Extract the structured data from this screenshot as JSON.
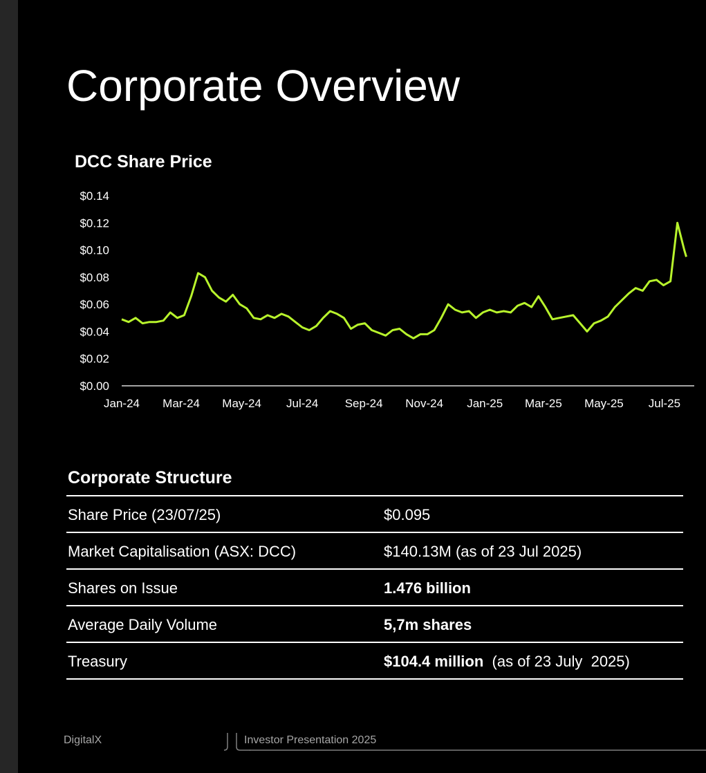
{
  "slide": {
    "title": "Corporate Overview"
  },
  "chart_data": {
    "type": "line",
    "title": "DCC Share Price",
    "xlabel": "",
    "ylabel": "",
    "x_tick_labels": [
      "Jan-24",
      "Mar-24",
      "May-24",
      "Jul-24",
      "Sep-24",
      "Nov-24",
      "Jan-25",
      "Mar-25",
      "May-25",
      "Jul-25"
    ],
    "y_tick_labels": [
      "$0.00",
      "$0.02",
      "$0.04",
      "$0.06",
      "$0.08",
      "$0.10",
      "$0.12",
      "$0.14"
    ],
    "ylim": [
      0,
      0.14
    ],
    "xlim": [
      "2024-01-01",
      "2025-07-31"
    ],
    "grid": false,
    "line_color": "#b8f42c",
    "series": [
      {
        "x": [
          "2024-01-01",
          "2024-01-08",
          "2024-01-15",
          "2024-01-22",
          "2024-01-29",
          "2024-02-05",
          "2024-02-12",
          "2024-02-19",
          "2024-02-26",
          "2024-03-04",
          "2024-03-11",
          "2024-03-18",
          "2024-03-25",
          "2024-04-01",
          "2024-04-08",
          "2024-04-15",
          "2024-04-22",
          "2024-04-29",
          "2024-05-06",
          "2024-05-13",
          "2024-05-20",
          "2024-05-27",
          "2024-06-03",
          "2024-06-10",
          "2024-06-17",
          "2024-06-24",
          "2024-07-01",
          "2024-07-08",
          "2024-07-15",
          "2024-07-22",
          "2024-07-29",
          "2024-08-05",
          "2024-08-12",
          "2024-08-19",
          "2024-08-26",
          "2024-09-02",
          "2024-09-09",
          "2024-09-16",
          "2024-09-23",
          "2024-09-30",
          "2024-10-07",
          "2024-10-14",
          "2024-10-21",
          "2024-10-28",
          "2024-11-04",
          "2024-11-11",
          "2024-11-18",
          "2024-11-25",
          "2024-12-02",
          "2024-12-09",
          "2024-12-16",
          "2024-12-23",
          "2024-12-30",
          "2025-01-06",
          "2025-01-13",
          "2025-01-20",
          "2025-01-27",
          "2025-02-03",
          "2025-02-10",
          "2025-02-17",
          "2025-02-24",
          "2025-03-03",
          "2025-03-10",
          "2025-03-17",
          "2025-03-24",
          "2025-03-31",
          "2025-04-07",
          "2025-04-14",
          "2025-04-21",
          "2025-04-28",
          "2025-05-05",
          "2025-05-12",
          "2025-05-19",
          "2025-05-26",
          "2025-06-02",
          "2025-06-09",
          "2025-06-16",
          "2025-06-23",
          "2025-06-30",
          "2025-07-07",
          "2025-07-14",
          "2025-07-21",
          "2025-07-23"
        ],
        "values": [
          0.049,
          0.047,
          0.05,
          0.046,
          0.047,
          0.047,
          0.048,
          0.054,
          0.05,
          0.052,
          0.066,
          0.083,
          0.08,
          0.07,
          0.065,
          0.062,
          0.067,
          0.06,
          0.057,
          0.05,
          0.049,
          0.052,
          0.05,
          0.053,
          0.051,
          0.047,
          0.043,
          0.041,
          0.044,
          0.05,
          0.055,
          0.053,
          0.05,
          0.042,
          0.045,
          0.046,
          0.041,
          0.039,
          0.037,
          0.041,
          0.042,
          0.038,
          0.035,
          0.038,
          0.038,
          0.041,
          0.05,
          0.06,
          0.056,
          0.054,
          0.055,
          0.05,
          0.054,
          0.056,
          0.054,
          0.055,
          0.054,
          0.059,
          0.061,
          0.058,
          0.066,
          0.058,
          0.049,
          0.05,
          0.051,
          0.052,
          0.046,
          0.04,
          0.046,
          0.048,
          0.051,
          0.058,
          0.063,
          0.068,
          0.072,
          0.07,
          0.077,
          0.078,
          0.074,
          0.077,
          0.12,
          0.1,
          0.095
        ]
      }
    ]
  },
  "corporate_structure": {
    "title": "Corporate Structure",
    "rows": [
      {
        "label": "Share Price (23/07/25)",
        "value_bold": "",
        "value": "$0.095"
      },
      {
        "label": "Market Capitalisation (ASX: DCC)",
        "value_bold": "",
        "value": "$140.13M (as of 23 Jul 2025)"
      },
      {
        "label": "Shares on Issue",
        "value_bold": "1.476 billion",
        "value": ""
      },
      {
        "label": "Average Daily Volume",
        "value_bold": "5,7m shares",
        "value": ""
      },
      {
        "label": "Treasury",
        "value_bold": "$104.4 million",
        "value": "  (as of 23 July  2025)"
      }
    ]
  },
  "footer": {
    "left": "DigitalX",
    "right": "Investor Presentation 2025"
  }
}
